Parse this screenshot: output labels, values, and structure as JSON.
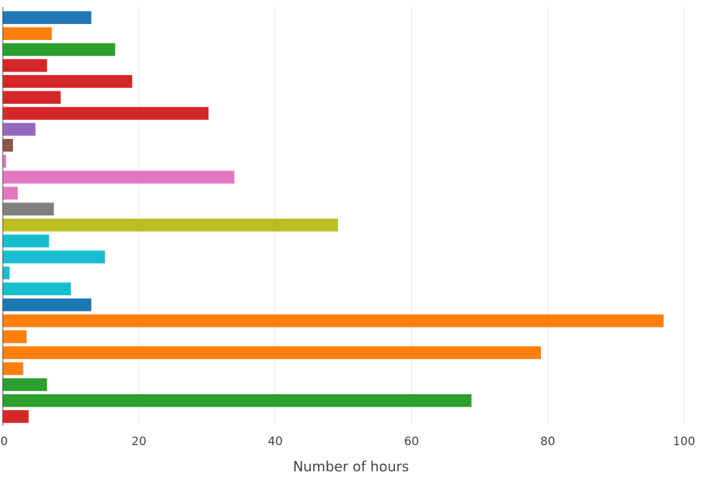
{
  "chart_data": {
    "type": "bar",
    "orientation": "horizontal",
    "title": "",
    "xlabel": "Number of hours",
    "ylabel": "",
    "xlim": [
      0,
      100
    ],
    "xticks": [
      0,
      20,
      40,
      60,
      80,
      100
    ],
    "xtick_labels": [
      "0",
      "20",
      "40",
      "60",
      "80",
      "100"
    ],
    "grid": true,
    "legend": "none",
    "values": [
      13,
      7.2,
      16.5,
      6.5,
      19,
      8.5,
      30.2,
      4.8,
      1.5,
      0.5,
      34,
      2.2,
      7.5,
      49.2,
      6.8,
      15,
      1,
      10,
      13,
      97,
      3.5,
      79,
      3,
      6.5,
      68.8,
      3.8
    ],
    "colors": [
      "#1f77b4",
      "#ff7f0e",
      "#2ca02c",
      "#d62728",
      "#d62728",
      "#d62728",
      "#d62728",
      "#9467bd",
      "#8c564b",
      "#e377c2",
      "#e377c2",
      "#e377c2",
      "#7f7f7f",
      "#bcbd22",
      "#17becf",
      "#17becf",
      "#17becf",
      "#17becf",
      "#1f77b4",
      "#ff7f0e",
      "#ff7f0e",
      "#ff7f0e",
      "#ff7f0e",
      "#2ca02c",
      "#2ca02c",
      "#d62728"
    ]
  }
}
